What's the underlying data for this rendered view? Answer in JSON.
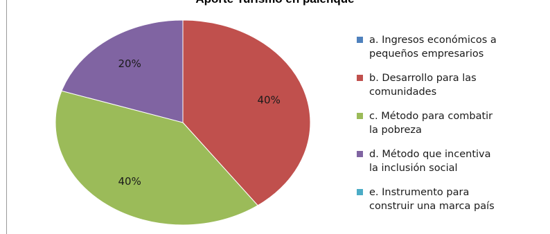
{
  "chart_data": {
    "type": "pie",
    "title": "Aporte Turismo en palenque",
    "categories": [
      "a. Ingresos  económicos a\npequeños empresarios",
      "b. Desarrollo para las\ncomunidades",
      "c. Método para combatir\nla pobreza",
      "d. Método que incentiva\nla inclusión social",
      "e. Instrumento para\nconstruir una marca país"
    ],
    "values": [
      0,
      40,
      40,
      20,
      0
    ],
    "data_labels": [
      "",
      "40%",
      "40%",
      "20%",
      ""
    ],
    "colors": [
      "#4f81bd",
      "#c0504d",
      "#9bbb59",
      "#8064a2",
      "#4bacc6"
    ],
    "legend_position": "right"
  }
}
